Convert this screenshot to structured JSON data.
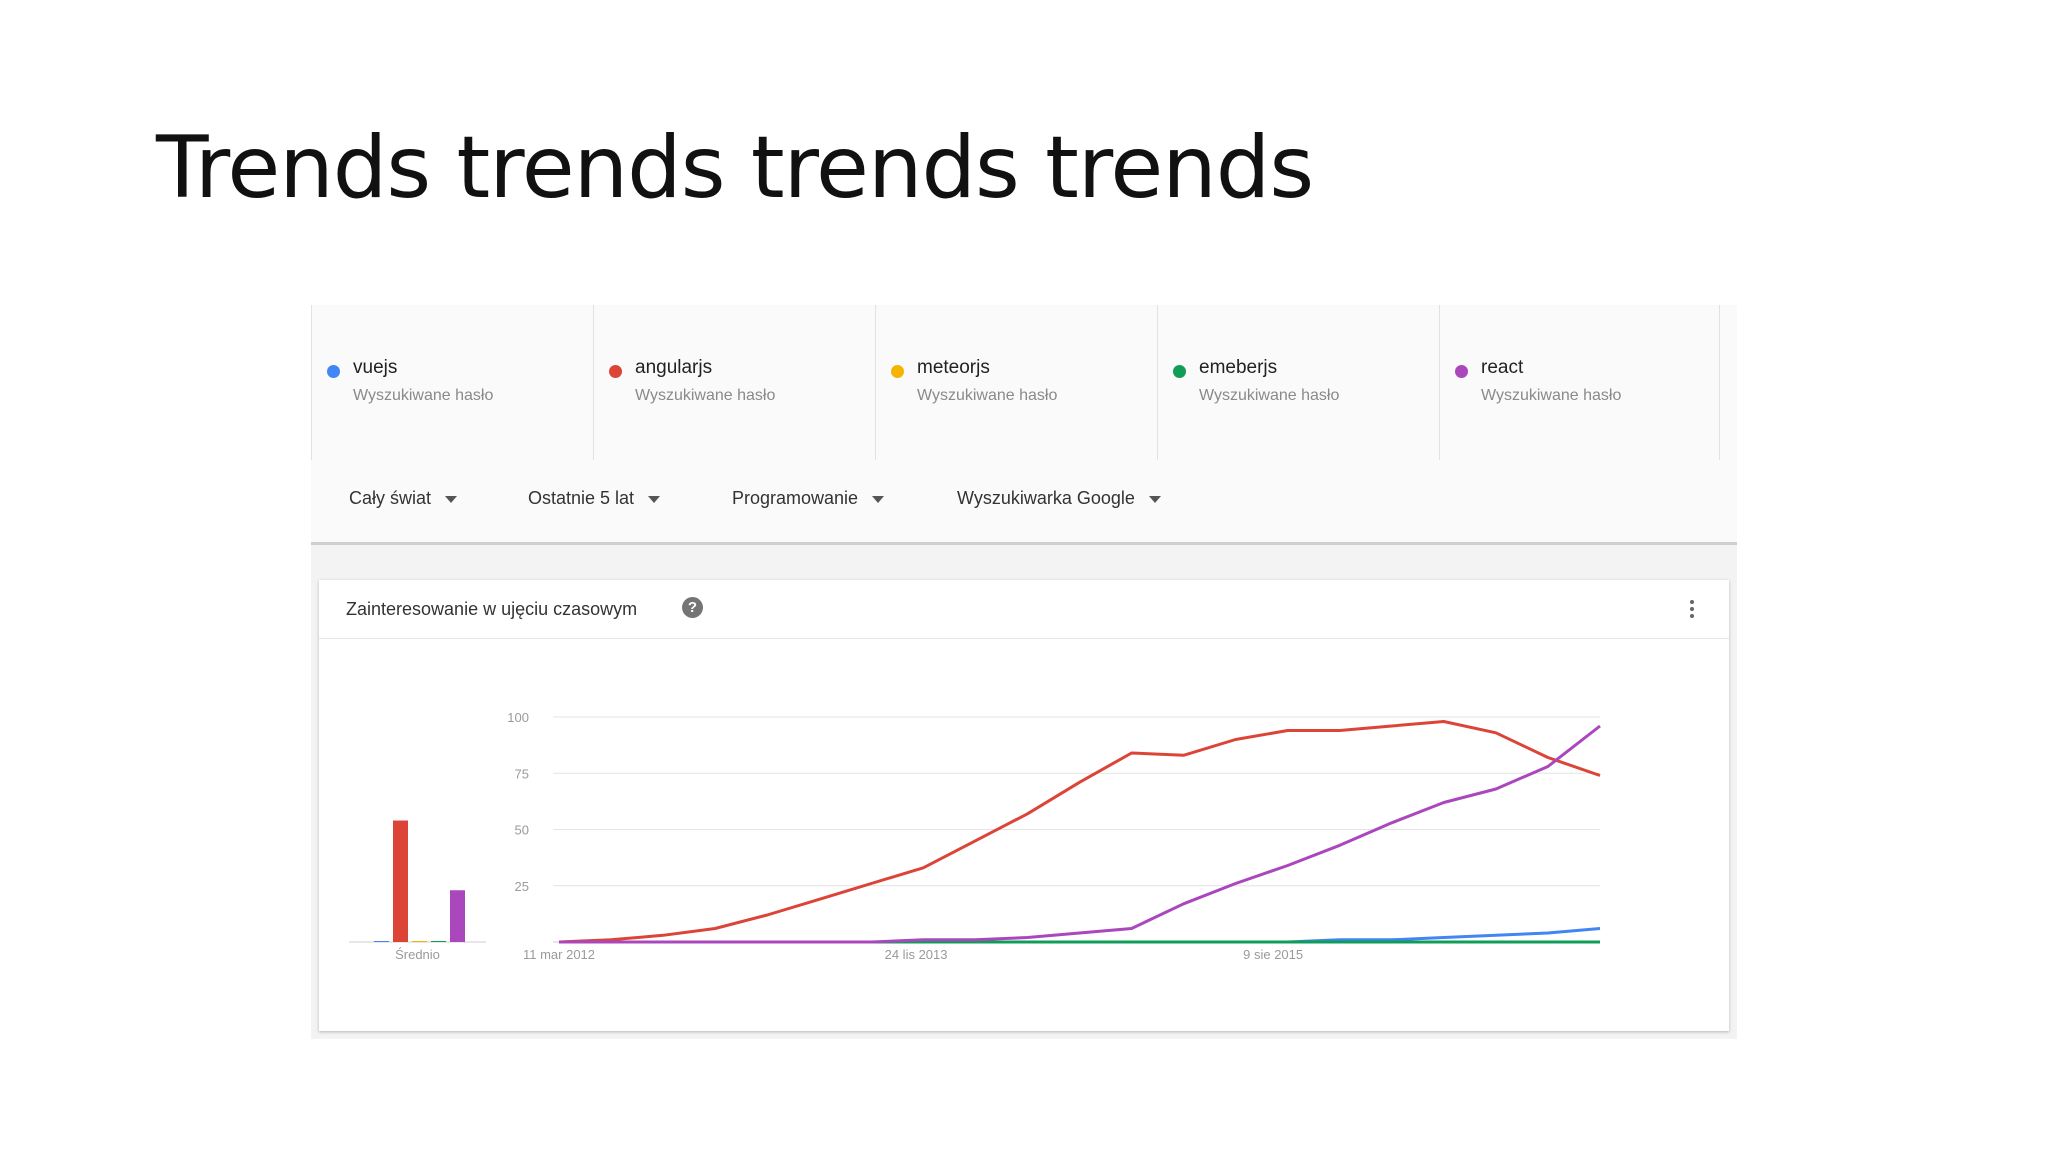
{
  "slide": {
    "title": "Trends trends trends trends"
  },
  "terms": [
    {
      "name": "vuejs",
      "sub": "Wyszukiwane hasło",
      "color": "#4285f4"
    },
    {
      "name": "angularjs",
      "sub": "Wyszukiwane hasło",
      "color": "#db4437"
    },
    {
      "name": "meteorjs",
      "sub": "Wyszukiwane hasło",
      "color": "#f4b400"
    },
    {
      "name": "emeberjs",
      "sub": "Wyszukiwane hasło",
      "color": "#0f9d58"
    },
    {
      "name": "react",
      "sub": "Wyszukiwane hasło",
      "color": "#ab47bc"
    }
  ],
  "filters": {
    "region": "Cały świat",
    "period": "Ostatnie 5 lat",
    "category": "Programowanie",
    "source": "Wyszukiwarka Google"
  },
  "card": {
    "title": "Zainteresowanie w ujęciu czasowym",
    "help": "?"
  },
  "chart_data": {
    "type": "line",
    "title": "Zainteresowanie w ujęciu czasowym",
    "ylim": [
      0,
      100
    ],
    "y_ticks": [
      "25",
      "50",
      "75",
      "100"
    ],
    "x_ticks": [
      "11 mar 2012",
      "24 lis 2013",
      "9 sie 2015"
    ],
    "x": [
      0,
      3,
      6,
      9,
      12,
      15,
      18,
      21,
      24,
      27,
      30,
      33,
      36,
      39,
      42,
      45,
      48,
      51,
      54,
      57,
      60
    ],
    "series": [
      {
        "name": "vuejs",
        "color": "#4285f4",
        "values": [
          0,
          0,
          0,
          0,
          0,
          0,
          0,
          0,
          0,
          0,
          0,
          0,
          0,
          0,
          0,
          1,
          1,
          2,
          3,
          4,
          6
        ]
      },
      {
        "name": "angularjs",
        "color": "#db4437",
        "values": [
          0,
          1,
          3,
          6,
          12,
          19,
          26,
          33,
          45,
          57,
          71,
          84,
          83,
          90,
          94,
          94,
          96,
          98,
          93,
          82,
          74
        ]
      },
      {
        "name": "meteorjs",
        "color": "#f4b400",
        "values": [
          0,
          0,
          0,
          0,
          0,
          0,
          0,
          0,
          0,
          0,
          0,
          0,
          0,
          0,
          0,
          0,
          0,
          0,
          0,
          0,
          0
        ]
      },
      {
        "name": "emeberjs",
        "color": "#0f9d58",
        "values": [
          0,
          0,
          0,
          0,
          0,
          0,
          0,
          0,
          0,
          0,
          0,
          0,
          0,
          0,
          0,
          0,
          0,
          0,
          0,
          0,
          0
        ]
      },
      {
        "name": "react",
        "color": "#ab47bc",
        "values": [
          0,
          0,
          0,
          0,
          0,
          0,
          0,
          1,
          1,
          2,
          4,
          6,
          17,
          26,
          34,
          43,
          53,
          62,
          68,
          78,
          96
        ]
      }
    ],
    "average": {
      "label": "Średnio",
      "bars": [
        {
          "name": "vuejs",
          "value": 0,
          "color": "#4285f4"
        },
        {
          "name": "angularjs",
          "value": 54,
          "color": "#db4437"
        },
        {
          "name": "meteorjs",
          "value": 0,
          "color": "#f4b400"
        },
        {
          "name": "emeberjs",
          "value": 0,
          "color": "#0f9d58"
        },
        {
          "name": "react",
          "value": 23,
          "color": "#ab47bc"
        }
      ]
    }
  }
}
